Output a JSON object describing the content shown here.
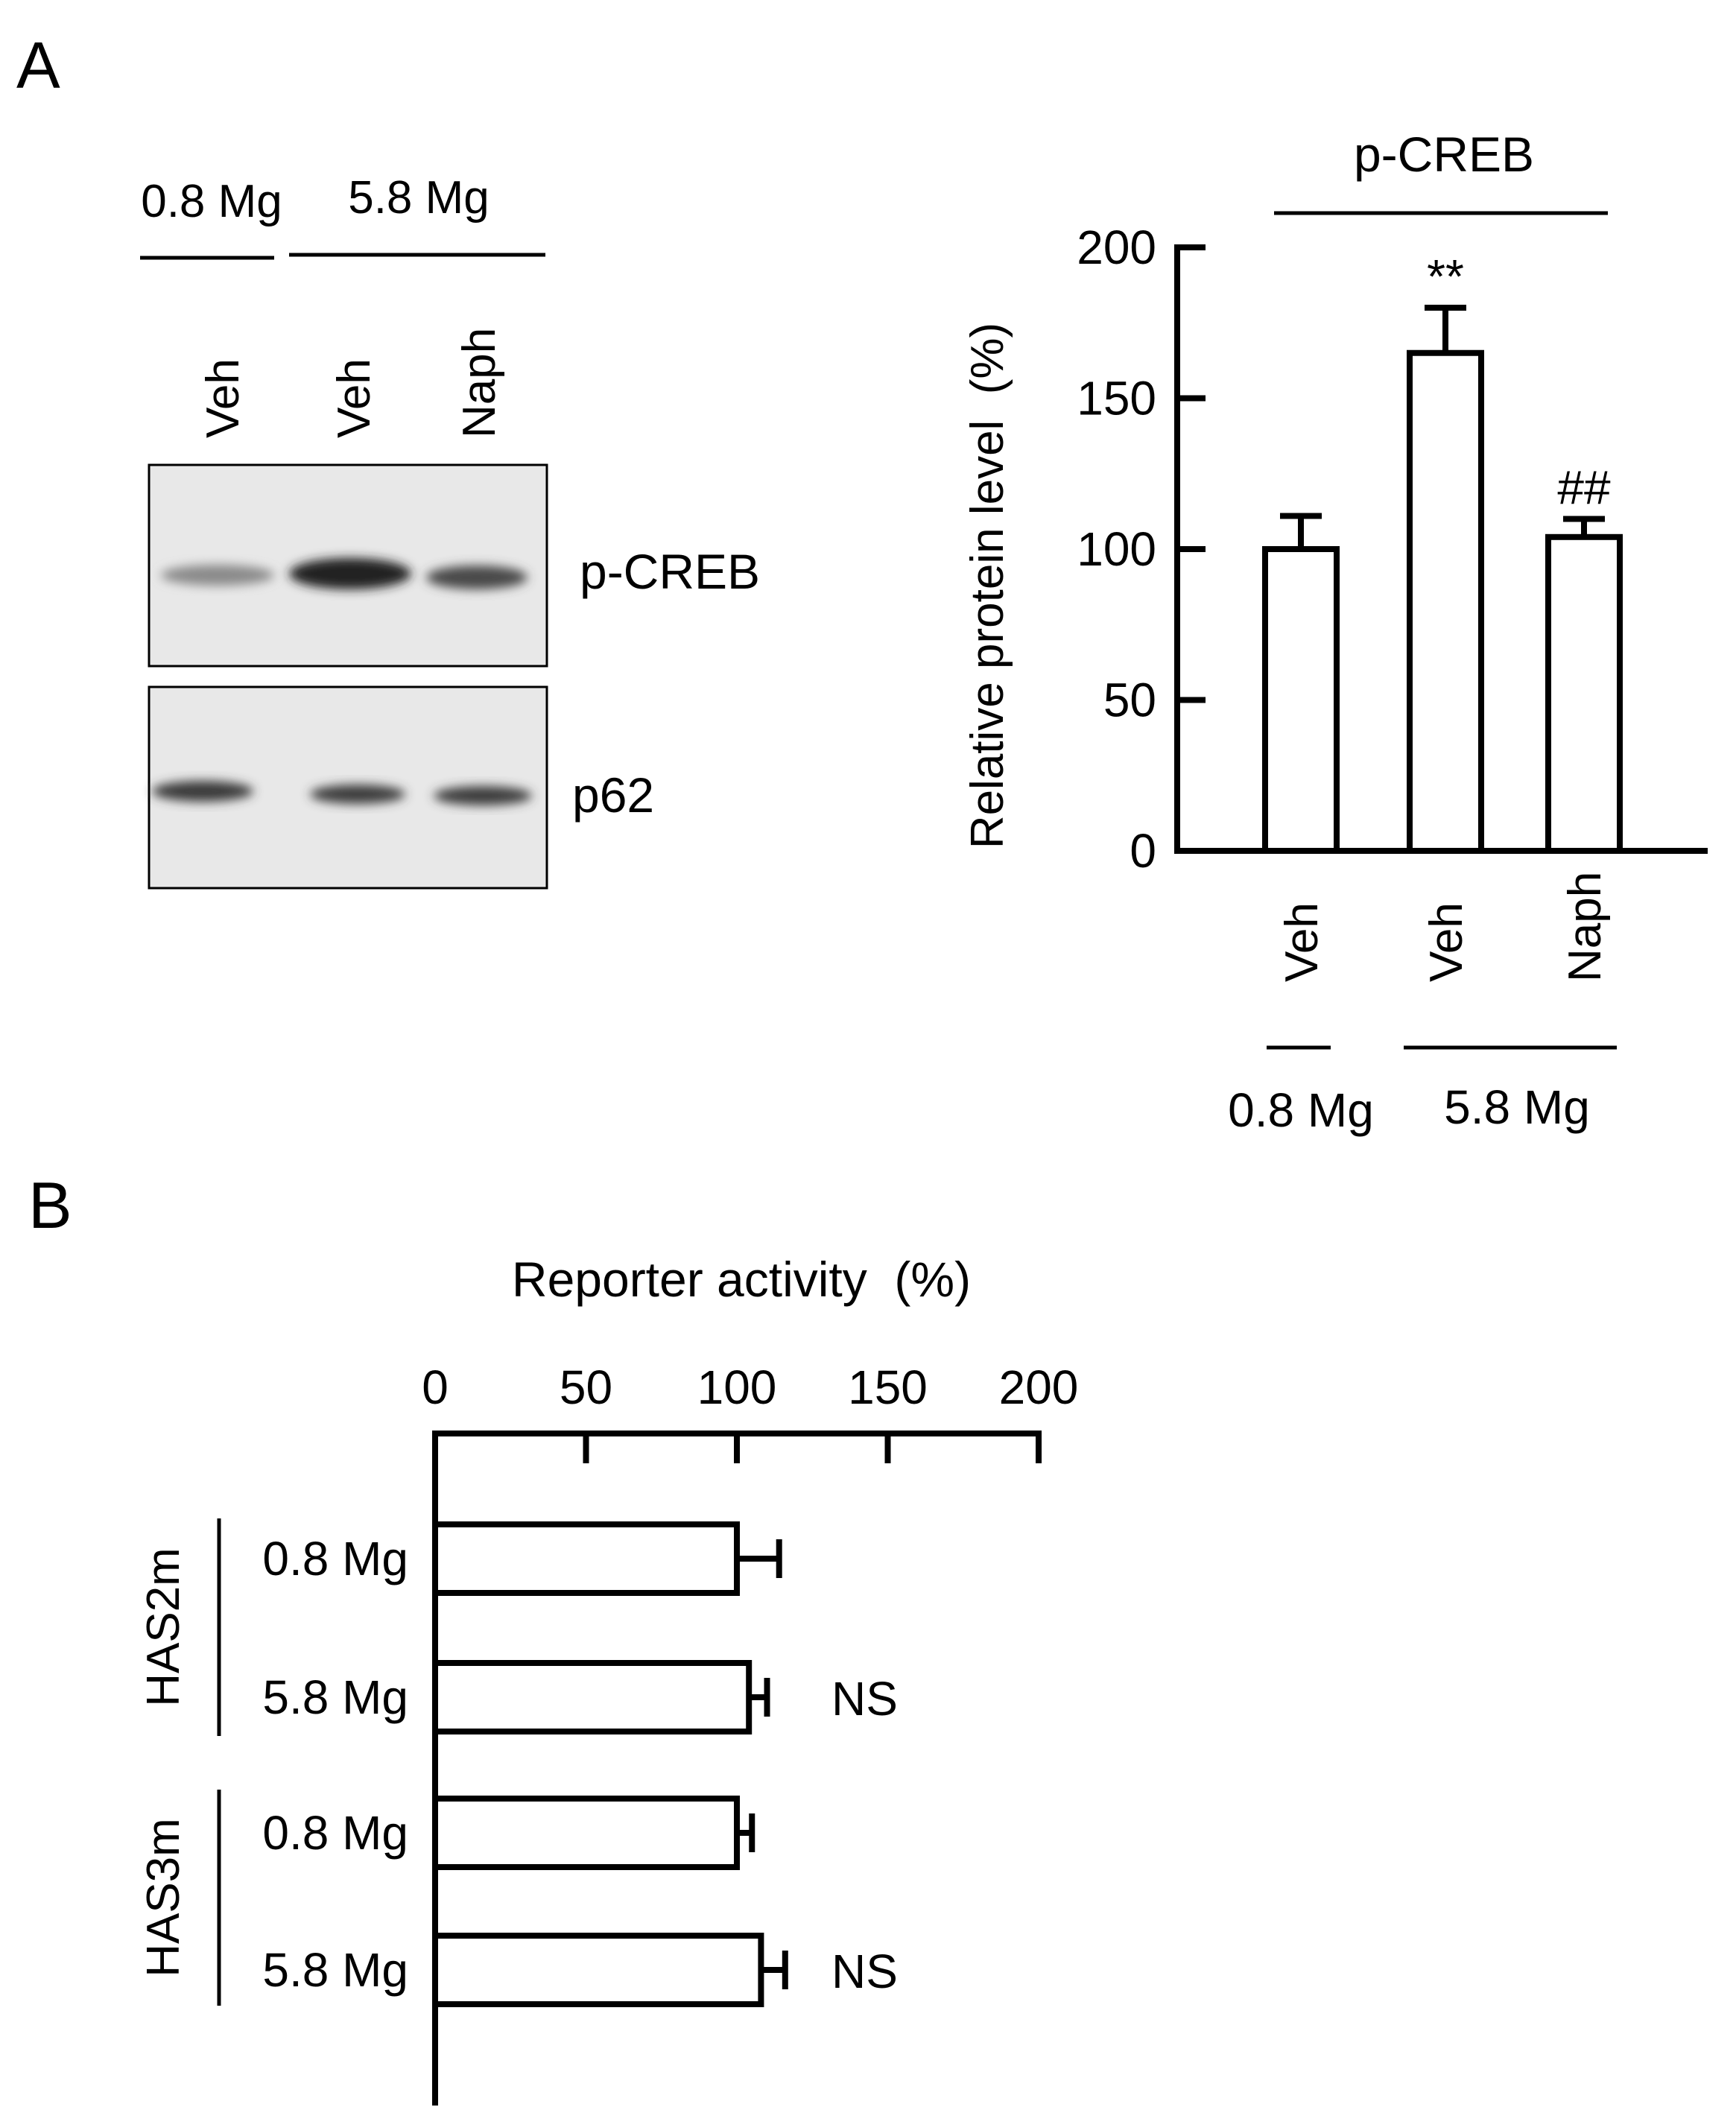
{
  "panel_labels": [
    "A",
    "B"
  ],
  "blot": {
    "group_labels": [
      "0.8 Mg",
      "5.8 Mg"
    ],
    "lane_labels": [
      "Veh",
      "Veh",
      "Naph"
    ],
    "band_labels": [
      "p-CREB",
      "p62"
    ]
  },
  "chart_data": [
    {
      "type": "bar",
      "orientation": "vertical",
      "title": "p-CREB",
      "ylabel": "Relative protein level  (%)",
      "xlabel": "",
      "categories": [
        "Veh",
        "Veh",
        "Naph"
      ],
      "group_labels": [
        "0.8 Mg",
        "5.8 Mg"
      ],
      "groups": [
        {
          "label": "0.8 Mg",
          "members": [
            0
          ]
        },
        {
          "label": "5.8 Mg",
          "members": [
            1,
            2
          ]
        }
      ],
      "values": [
        100,
        165,
        104
      ],
      "errors": [
        11,
        15,
        6
      ],
      "annotations": [
        "",
        "**",
        "##"
      ],
      "ylim": [
        0,
        200
      ],
      "yticks": [
        0,
        50,
        100,
        150,
        200
      ],
      "grid": false,
      "legend": "none"
    },
    {
      "type": "bar",
      "orientation": "horizontal",
      "title": "Reporter activity  (%)",
      "xlabel": "",
      "categories": [
        "0.8 Mg",
        "5.8 Mg",
        "0.8 Mg",
        "5.8 Mg"
      ],
      "group_labels": [
        "HAS2m",
        "HAS3m"
      ],
      "groups": [
        {
          "label": "HAS2m",
          "members": [
            0,
            1
          ]
        },
        {
          "label": "HAS3m",
          "members": [
            2,
            3
          ]
        }
      ],
      "values": [
        100,
        104,
        100,
        108
      ],
      "errors": [
        14,
        6,
        5,
        8
      ],
      "annotations": [
        "",
        "NS",
        "",
        "NS"
      ],
      "xlim": [
        0,
        200
      ],
      "xticks": [
        0,
        50,
        100,
        150,
        200
      ],
      "grid": false,
      "legend": "none"
    }
  ]
}
